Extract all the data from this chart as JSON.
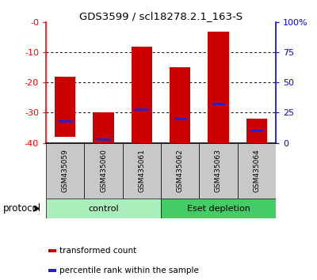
{
  "title": "GDS3599 / scl18278.2.1_163-S",
  "samples": [
    "GSM435059",
    "GSM435060",
    "GSM435061",
    "GSM435062",
    "GSM435063",
    "GSM435064"
  ],
  "bar_bottoms": [
    -38,
    -40,
    -40,
    -40,
    -40,
    -40
  ],
  "bar_tops": [
    -18,
    -30,
    -8,
    -15,
    -3,
    -32
  ],
  "blue_positions": [
    -33,
    -39,
    -29,
    -32,
    -27,
    -36
  ],
  "ylim_left": [
    -40,
    0
  ],
  "yticks_left": [
    0,
    -10,
    -20,
    -30,
    -40
  ],
  "ytick_labels_left": [
    "-0",
    "-10",
    "-20",
    "-30",
    "-40"
  ],
  "yticks_right": [
    100,
    75,
    50,
    25,
    0
  ],
  "ytick_labels_right": [
    "100%",
    "75",
    "50",
    "25",
    "0"
  ],
  "bar_color": "#cc0000",
  "blue_color": "#2222cc",
  "groups": [
    {
      "label": "control",
      "start": 0,
      "end": 3,
      "color": "#aaeebb"
    },
    {
      "label": "Eset depletion",
      "start": 3,
      "end": 6,
      "color": "#44cc66"
    }
  ],
  "protocol_label": "protocol",
  "legend_items": [
    {
      "color": "#cc0000",
      "label": "transformed count"
    },
    {
      "color": "#2222cc",
      "label": "percentile rank within the sample"
    }
  ],
  "sample_bg_color": "#c8c8c8",
  "bar_width": 0.55,
  "blue_bar_width": 0.35,
  "blue_bar_height": 0.8
}
